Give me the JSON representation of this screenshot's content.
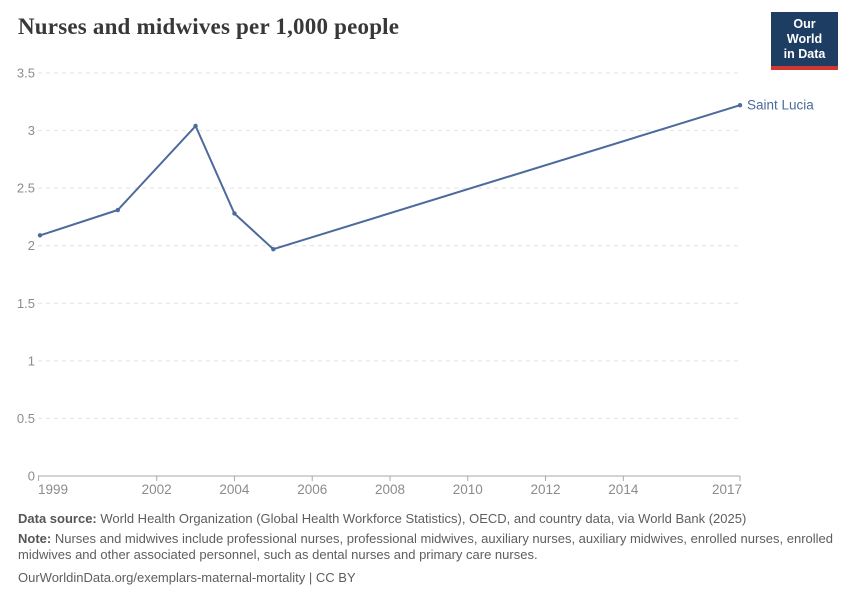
{
  "header": {
    "title": "Nurses and midwives per 1,000 people",
    "logo": {
      "line1": "Our World",
      "line2": "in Data"
    }
  },
  "chart_data": {
    "type": "line",
    "title": "Nurses and midwives per 1,000 people",
    "series": [
      {
        "name": "Saint Lucia",
        "x": [
          1999,
          2001,
          2003,
          2004,
          2005,
          2017
        ],
        "values": [
          2.09,
          2.31,
          3.04,
          2.28,
          1.97,
          3.22
        ]
      }
    ],
    "xlabel": "",
    "ylabel": "",
    "xlim": [
      1999,
      2017
    ],
    "ylim": [
      0,
      3.5
    ],
    "xticks": [
      1999,
      2002,
      2004,
      2006,
      2008,
      2010,
      2012,
      2014,
      2017
    ],
    "yticks": [
      0,
      0.5,
      1,
      1.5,
      2,
      2.5,
      3,
      3.5
    ],
    "grid": "horizontal-dashed",
    "legend_position": "line-end-label"
  },
  "footer": {
    "data_source_label": "Data source:",
    "data_source_text": " World Health Organization (Global Health Workforce Statistics), OECD, and country data, via World Bank (2025)",
    "note_label": "Note:",
    "note_text": " Nurses and midwives include professional nurses, professional midwives, auxiliary nurses, auxiliary midwives, enrolled nurses, enrolled midwives and other associated personnel, such as dental nurses and primary care nurses.",
    "link_text": "OurWorldinData.org/exemplars-maternal-mortality | CC BY"
  },
  "colors": {
    "series_line": "#4c6a9c",
    "entity_label": "#4c6a9c",
    "grid_line": "#e2e2e2",
    "axis_line": "#a9a9a9",
    "tick_label": "#8c8c8c",
    "title_text": "#383838",
    "footer_text": "#5e5e5e",
    "logo_bg": "#1d3d63",
    "logo_accent": "#cf3730"
  }
}
